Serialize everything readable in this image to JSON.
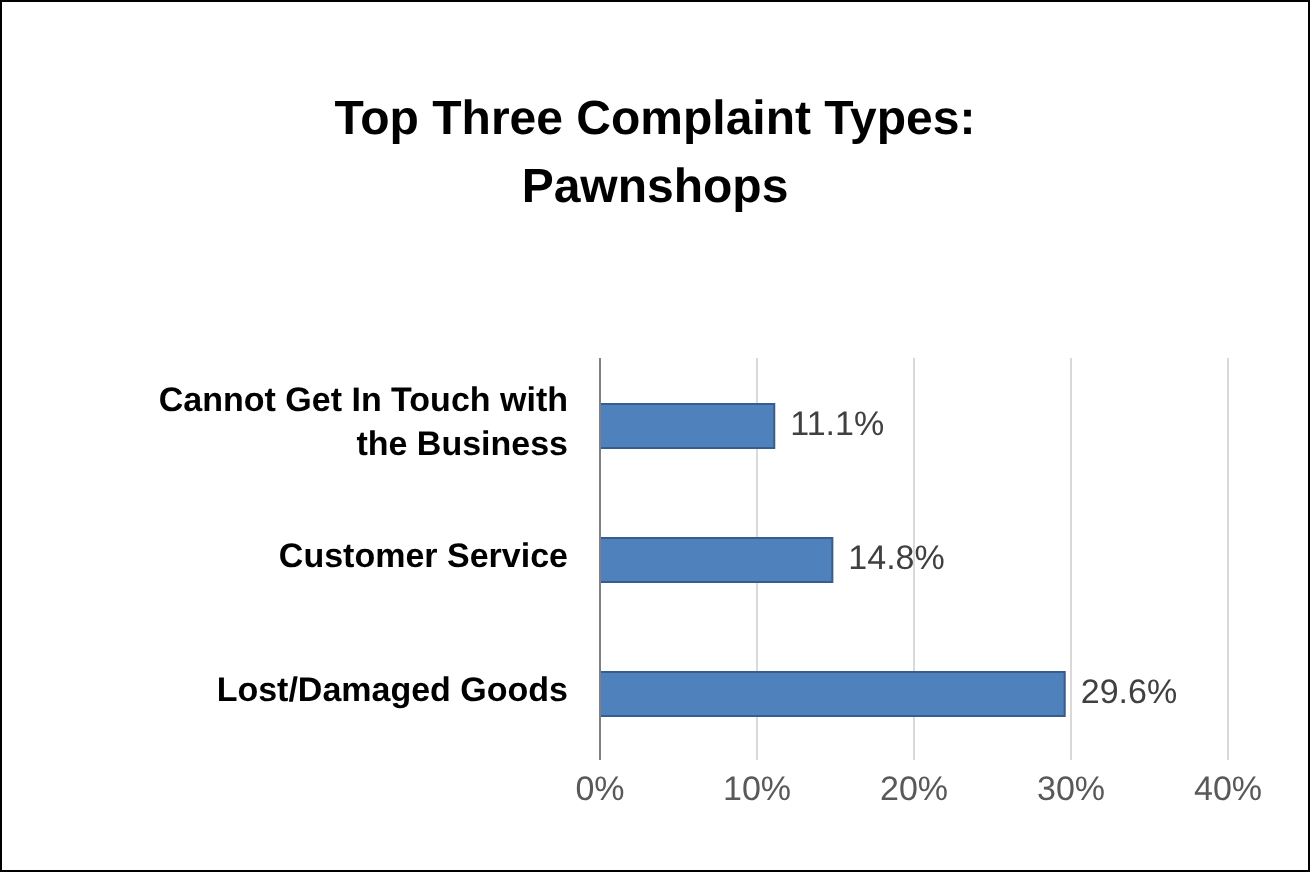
{
  "chart_data": {
    "type": "bar",
    "orientation": "horizontal",
    "title": "Top Three Complaint Types:\nPawnshops",
    "categories": [
      "Cannot Get In Touch with the Business",
      "Customer Service",
      "Lost/Damaged Goods"
    ],
    "values": [
      11.1,
      14.8,
      29.6
    ],
    "value_labels": [
      "11.1%",
      "14.8%",
      "29.6%"
    ],
    "color": "#4f81bd",
    "xlim": [
      0,
      40
    ],
    "xticks": [
      {
        "value": 0,
        "label": "0%"
      },
      {
        "value": 10,
        "label": "10%"
      },
      {
        "value": 20,
        "label": "20%"
      },
      {
        "value": 30,
        "label": "30%"
      },
      {
        "value": 40,
        "label": "40%"
      }
    ],
    "grid": "x",
    "legend": false
  }
}
